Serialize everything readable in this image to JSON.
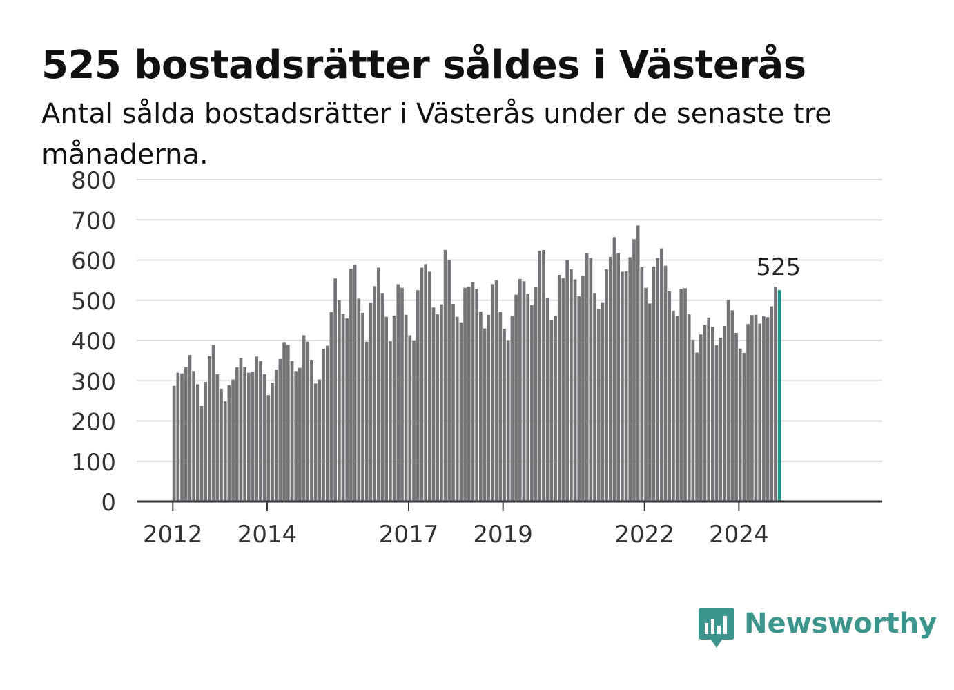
{
  "title": "525 bostadsrätter såldes i Västerås",
  "subtitle": "Antal sålda bostadsrätter i Västerås under de senaste tre månaderna.",
  "brand": {
    "name": "Newsworthy",
    "icon": "newsworthy-logo-icon",
    "color": "#3d968d"
  },
  "colors": {
    "bar": "#737378",
    "highlight": "#17958b",
    "grid": "#dddddd",
    "axis": "#333333"
  },
  "chart_data": {
    "type": "bar",
    "x_start": "2012-01",
    "interval": "month",
    "ylim": [
      0,
      800
    ],
    "yticks": [
      "0",
      "100",
      "200",
      "300",
      "400",
      "500",
      "600",
      "700",
      "800"
    ],
    "xticks": [
      {
        "label": "2012",
        "date": "2012-01"
      },
      {
        "label": "2014",
        "date": "2014-01"
      },
      {
        "label": "2017",
        "date": "2017-01"
      },
      {
        "label": "2019",
        "date": "2019-01"
      },
      {
        "label": "2022",
        "date": "2022-01"
      },
      {
        "label": "2024",
        "date": "2024-01"
      }
    ],
    "grid": true,
    "highlight_label": "525",
    "values": [
      287,
      320,
      318,
      333,
      364,
      324,
      291,
      237,
      297,
      361,
      388,
      316,
      280,
      249,
      289,
      303,
      333,
      356,
      334,
      320,
      322,
      360,
      349,
      316,
      264,
      295,
      328,
      354,
      396,
      389,
      349,
      324,
      332,
      413,
      397,
      352,
      293,
      303,
      379,
      387,
      471,
      554,
      500,
      466,
      455,
      578,
      589,
      504,
      469,
      397,
      494,
      535,
      581,
      518,
      459,
      398,
      462,
      540,
      531,
      464,
      413,
      400,
      525,
      581,
      590,
      571,
      482,
      465,
      490,
      625,
      601,
      491,
      459,
      445,
      531,
      534,
      545,
      528,
      472,
      430,
      464,
      540,
      550,
      472,
      429,
      401,
      461,
      514,
      553,
      547,
      516,
      488,
      532,
      623,
      625,
      505,
      450,
      461,
      563,
      555,
      600,
      577,
      552,
      510,
      561,
      617,
      605,
      518,
      479,
      495,
      577,
      608,
      657,
      618,
      571,
      572,
      607,
      652,
      686,
      582,
      531,
      492,
      584,
      605,
      629,
      586,
      522,
      474,
      461,
      528,
      530,
      465,
      402,
      370,
      415,
      439,
      457,
      434,
      388,
      407,
      436,
      501,
      475,
      419,
      380,
      369,
      441,
      463,
      464,
      442,
      460,
      458,
      485,
      534,
      525
    ]
  }
}
